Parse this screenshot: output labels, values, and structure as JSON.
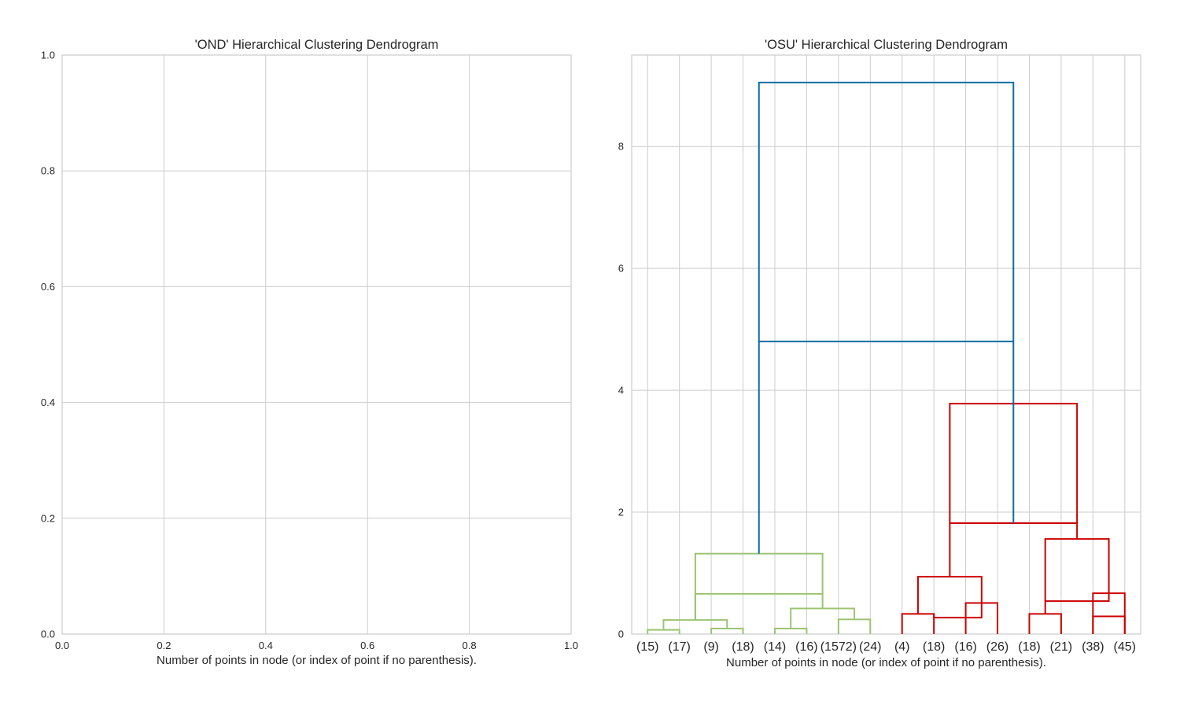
{
  "chart_data": [
    {
      "type": "dendrogram",
      "title": "'OND' Hierarchical Clustering Dendrogram",
      "xlabel": "Number of points in node (or index of point if no parenthesis).",
      "ylabel": "",
      "xlim": [
        0,
        1
      ],
      "ylim": [
        0,
        1
      ],
      "xticks": [
        "0.0",
        "0.2",
        "0.4",
        "0.6",
        "0.8",
        "1.0"
      ],
      "yticks": [
        "0.0",
        "0.2",
        "0.4",
        "0.6",
        "0.8",
        "1.0"
      ],
      "grid": true,
      "links": []
    },
    {
      "type": "dendrogram",
      "title": "'OSU' Hierarchical Clustering Dendrogram",
      "xlabel": "Number of points in node (or index of point if no parenthesis).",
      "ylabel": "",
      "ylim": [
        0,
        9.5
      ],
      "yticks": [
        "0",
        "2",
        "4",
        "6",
        "8"
      ],
      "grid": true,
      "leaves": [
        "(15)",
        "(17)",
        "(9)",
        "(18)",
        "(14)",
        "(16)",
        "(1572)",
        "(24)",
        "(4)",
        "(18)",
        "(16)",
        "(26)",
        "(18)",
        "(21)",
        "(38)",
        "(45)"
      ],
      "colors": {
        "cluster1": "#9bc472",
        "cluster2": "#cc0000",
        "root": "#0a6ea2"
      },
      "links": [
        {
          "left": 0,
          "right": 1,
          "left_h": 0,
          "right_h": 0,
          "height": 0.07,
          "cluster": "cluster1"
        },
        {
          "left": 2,
          "right": 3,
          "left_h": 0,
          "right_h": 0,
          "height": 0.09,
          "cluster": "cluster1"
        },
        {
          "left": 0.5,
          "right": 2.5,
          "left_h": 0.07,
          "right_h": 0.09,
          "height": 0.23,
          "cluster": "cluster1"
        },
        {
          "left": 4,
          "right": 5,
          "left_h": 0,
          "right_h": 0,
          "height": 0.09,
          "cluster": "cluster1"
        },
        {
          "left": 6,
          "right": 7,
          "left_h": 0,
          "right_h": 0,
          "height": 0.24,
          "cluster": "cluster1"
        },
        {
          "left": 4.5,
          "right": 6.5,
          "left_h": 0.09,
          "right_h": 0.24,
          "height": 0.42,
          "cluster": "cluster1"
        },
        {
          "left": 1.5,
          "right": 5.5,
          "left_h": 0.23,
          "right_h": 0.42,
          "height": 0.66,
          "cluster": "cluster1"
        },
        {
          "left": 1.5,
          "right": 5.5,
          "left_h": 0.23,
          "right_h": 0.66,
          "height": 1.32,
          "cluster": "cluster1"
        },
        {
          "left": 8,
          "right": 9,
          "left_h": 0,
          "right_h": 0,
          "height": 0.33,
          "cluster": "cluster2"
        },
        {
          "left": 10,
          "right": 11,
          "left_h": 0,
          "right_h": 0,
          "height": 0.51,
          "cluster": "cluster2"
        },
        {
          "left": 9,
          "right": 10.5,
          "left_h": 0.33,
          "right_h": 0.51,
          "height": 0.27,
          "cluster": "cluster2"
        },
        {
          "left": 8.5,
          "right": 10.5,
          "left_h": 0.33,
          "right_h": 0.51,
          "height": 0.94,
          "cluster": "cluster2"
        },
        {
          "left": 12,
          "right": 13,
          "left_h": 0,
          "right_h": 0,
          "height": 0.33,
          "cluster": "cluster2"
        },
        {
          "left": 14,
          "right": 15,
          "left_h": 0,
          "right_h": 0,
          "height": 0.67,
          "cluster": "cluster2"
        },
        {
          "left": 14,
          "right": 15,
          "left_h": 0,
          "right_h": 0,
          "height": 0.29,
          "cluster": "cluster2"
        },
        {
          "left": 12.5,
          "right": 14.5,
          "left_h": 0.33,
          "right_h": 0.67,
          "height": 0.54,
          "cluster": "cluster2"
        },
        {
          "left": 12.5,
          "right": 14.5,
          "left_h": 0.54,
          "right_h": 0.67,
          "height": 1.56,
          "cluster": "cluster2"
        },
        {
          "left": 9.5,
          "right": 13.5,
          "left_h": 0.94,
          "right_h": 1.56,
          "height": 1.82,
          "cluster": "cluster2"
        },
        {
          "left": 9.5,
          "right": 13.5,
          "left_h": 1.82,
          "right_h": 1.82,
          "height": 3.78,
          "cluster": "cluster2"
        },
        {
          "left": 3.5,
          "right": 11.5,
          "left_h": 1.32,
          "right_h": 1.82,
          "height": 4.8,
          "cluster": "root"
        },
        {
          "left": 3.5,
          "right": 11.5,
          "left_h": 4.8,
          "right_h": 4.8,
          "height": 9.05,
          "cluster": "root"
        }
      ]
    }
  ]
}
